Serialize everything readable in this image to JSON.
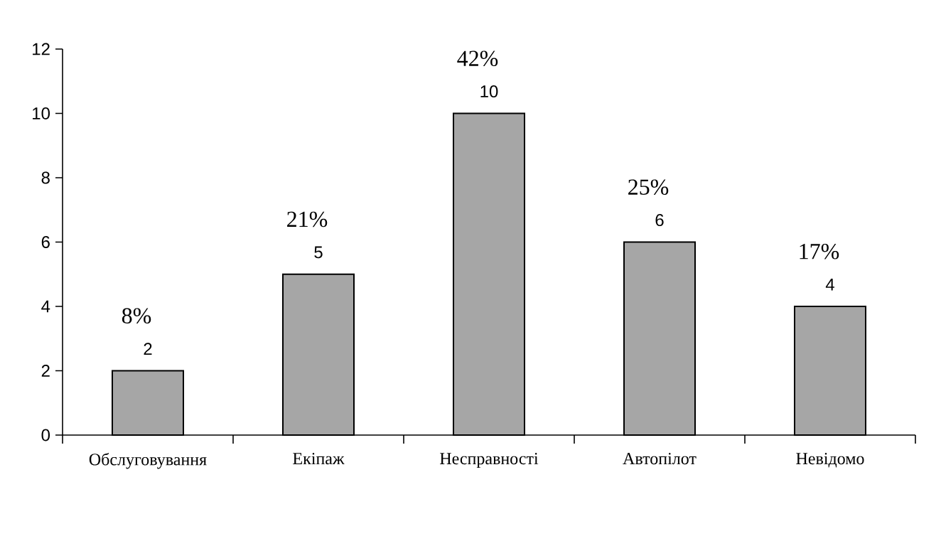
{
  "chart_data": {
    "type": "bar",
    "categories": [
      "Обслуговування",
      "Екіпаж",
      "Несправності",
      "Автопілот",
      "Невідомо"
    ],
    "values": [
      2,
      5,
      10,
      6,
      4
    ],
    "color": "#a6a6a6",
    "ylim": [
      0,
      12
    ],
    "yticks": [
      0,
      2,
      4,
      6,
      8,
      10,
      12
    ],
    "data_labels": true,
    "grid": false,
    "annotations": [
      {
        "text": "8%",
        "x": "Обслуговування",
        "y": 2
      },
      {
        "text": "21%",
        "x": "Екіпаж",
        "y": 5
      },
      {
        "text": "42%",
        "x": "Несправності",
        "y": 10
      },
      {
        "text": "25%",
        "x": "Автопілот",
        "y": 6
      },
      {
        "text": "17%",
        "x": "Невідомо",
        "y": 4
      }
    ]
  }
}
